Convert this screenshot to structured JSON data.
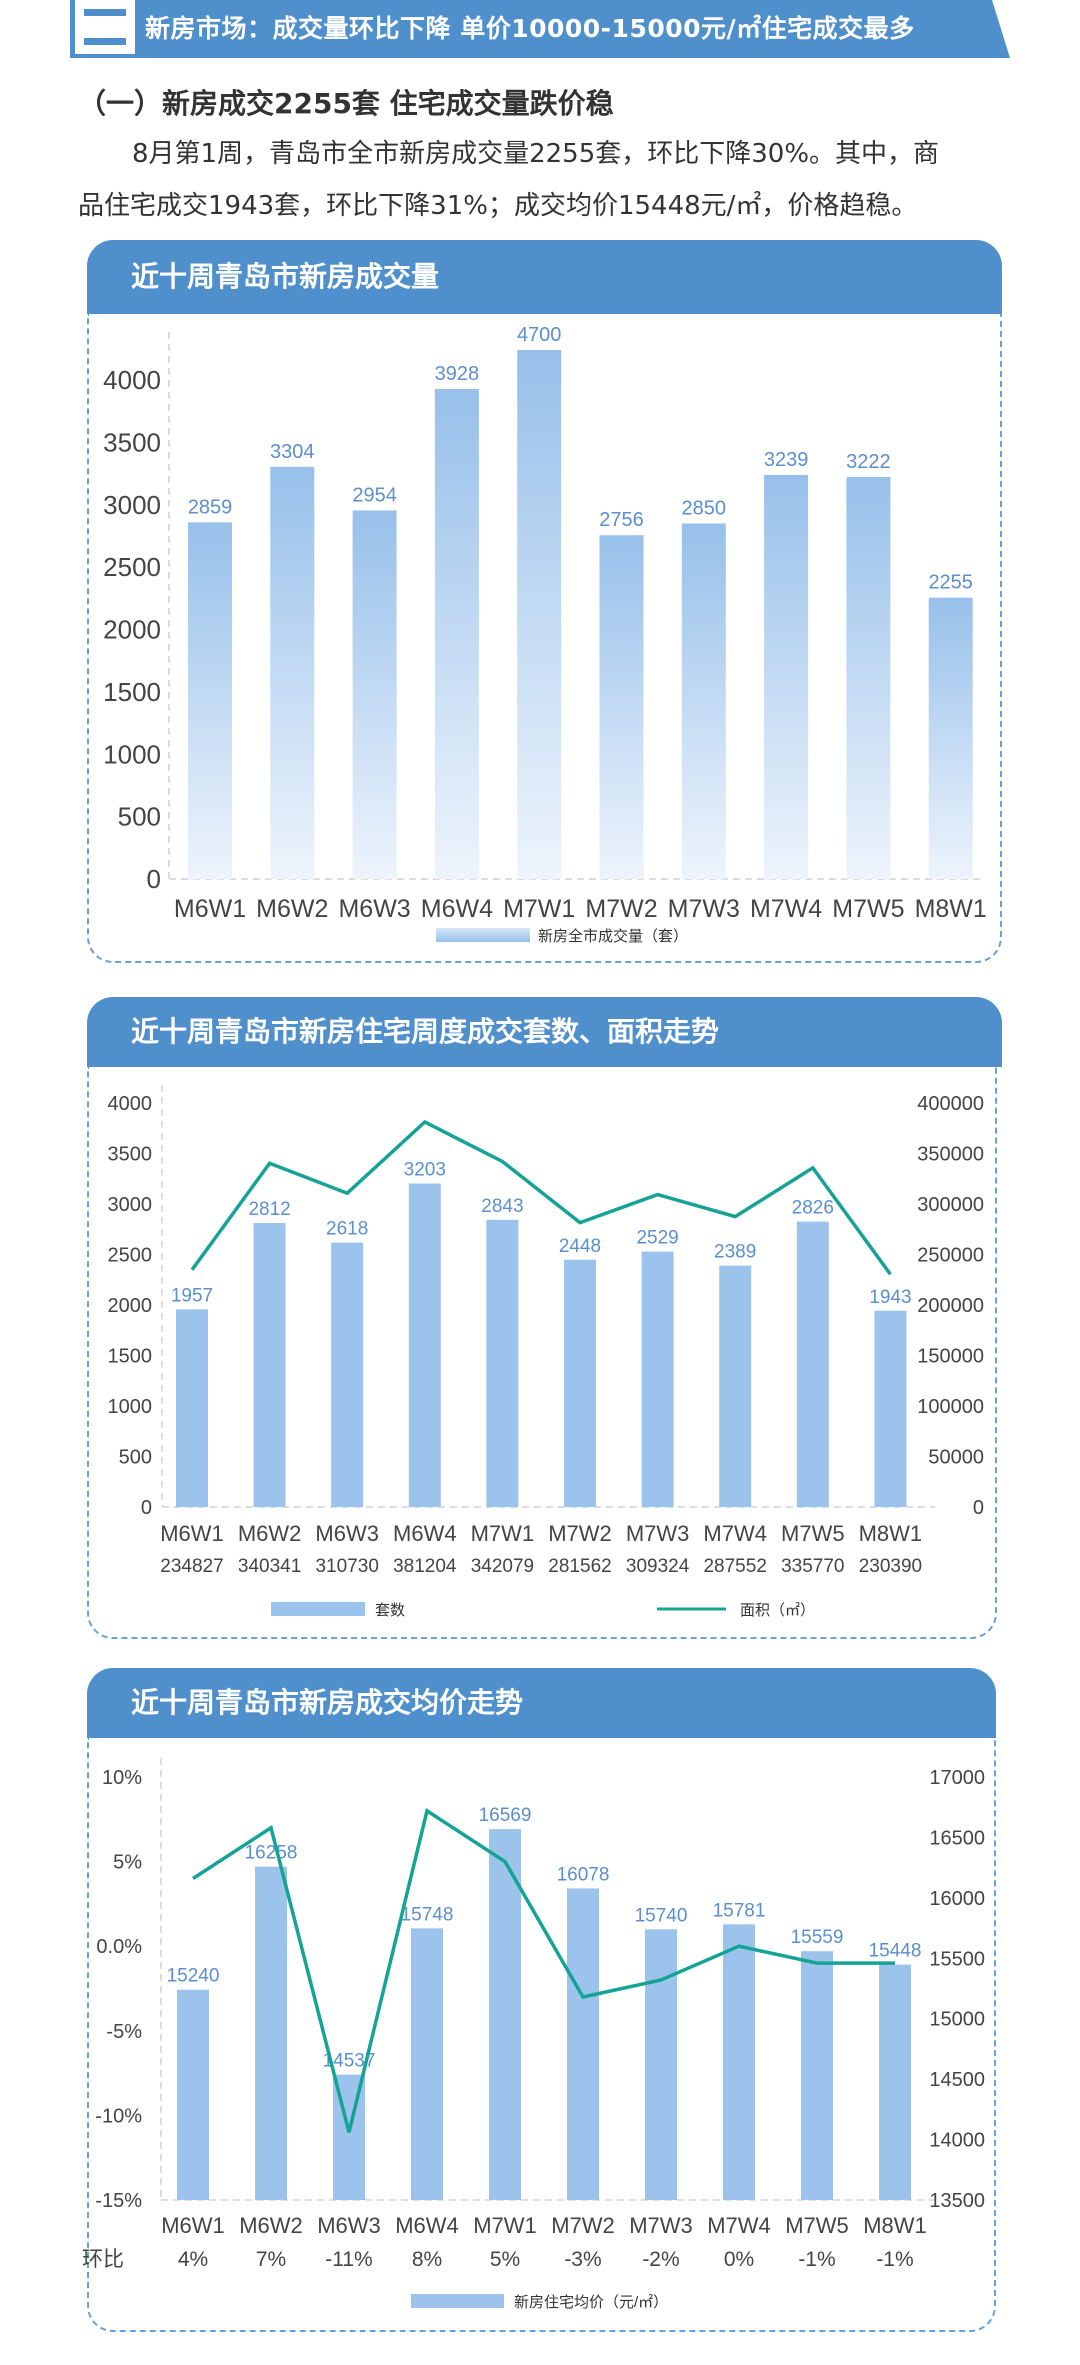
{
  "banner": {
    "number_glyph": "二",
    "title": "新房市场：成交量环比下降  单价10000-15000元/㎡住宅成交最多"
  },
  "section": {
    "heading": "（一）新房成交2255套  住宅成交量跌价稳",
    "paragraph_line1": "8月第1周，青岛市全市新房成交量2255套，环比下降30%。其中，商",
    "paragraph_line2": "品住宅成交1943套，环比下降31%；成交均价15448元/㎡，价格趋稳。"
  },
  "colors": {
    "brand_blue": "#4f8fcb",
    "bar_blue": "#9cc3ec",
    "value_label_blue": "#5b8fcf",
    "line_teal": "#15a396",
    "axis_text": "#444444",
    "panel_border": "#6aa1d8"
  },
  "chart_data": [
    {
      "type": "bar",
      "title": "近十周青岛市新房成交量",
      "categories": [
        "M6W1",
        "M6W2",
        "M6W3",
        "M6W4",
        "M7W1",
        "M7W2",
        "M7W3",
        "M7W4",
        "M7W5",
        "M8W1"
      ],
      "values": [
        2859,
        3304,
        2954,
        3928,
        4700,
        2756,
        2850,
        3239,
        3222,
        2255
      ],
      "yticks": [
        0,
        500,
        1000,
        1500,
        2000,
        2500,
        3000,
        3500,
        4000
      ],
      "ylim": [
        0,
        4300
      ],
      "legend": "新房全市成交量（套）",
      "xlabel": "",
      "ylabel": "",
      "grid": false,
      "legend_position": "bottom"
    },
    {
      "type": "bar+line",
      "title": "近十周青岛市新房住宅周度成交套数、面积走势",
      "categories": [
        "M6W1",
        "M6W2",
        "M6W3",
        "M6W4",
        "M7W1",
        "M7W2",
        "M7W3",
        "M7W4",
        "M7W5",
        "M8W1"
      ],
      "series": [
        {
          "name": "套数",
          "type": "bar",
          "axis": "left",
          "values": [
            1957,
            2812,
            2618,
            3203,
            2843,
            2448,
            2529,
            2389,
            2826,
            1943
          ]
        },
        {
          "name": "面积（㎡）",
          "type": "line",
          "axis": "right",
          "values": [
            234827,
            340341,
            310730,
            381204,
            342079,
            281562,
            309324,
            287552,
            335770,
            230390
          ]
        }
      ],
      "left_yticks": [
        0,
        500,
        1000,
        1500,
        2000,
        2500,
        3000,
        3500,
        4000
      ],
      "right_yticks": [
        0,
        50000,
        100000,
        150000,
        200000,
        250000,
        300000,
        350000,
        400000
      ],
      "left_ylim": [
        0,
        4000
      ],
      "right_ylim": [
        0,
        400000
      ],
      "area_row": [
        "234827",
        "340341",
        "310730",
        "381204",
        "342079",
        "281562",
        "309324",
        "287552",
        "335770",
        "230390"
      ],
      "legend_position": "bottom"
    },
    {
      "type": "bar+line",
      "title": "近十周青岛市新房成交均价走势",
      "categories": [
        "M6W1",
        "M6W2",
        "M6W3",
        "M6W4",
        "M7W1",
        "M7W2",
        "M7W3",
        "M7W4",
        "M7W5",
        "M8W1"
      ],
      "series": [
        {
          "name": "新房住宅均价（元/㎡）",
          "type": "bar",
          "axis": "right",
          "values": [
            15240,
            16258,
            14537,
            15748,
            16569,
            16078,
            15740,
            15781,
            15559,
            15448
          ]
        },
        {
          "name": "环比",
          "type": "line",
          "axis": "left",
          "values": [
            4,
            7,
            -11,
            8,
            5,
            -3,
            -2,
            0,
            -1,
            -1
          ]
        }
      ],
      "left_yticks": [
        "-15%",
        "-10%",
        "-5%",
        "0.0%",
        "5%",
        "10%"
      ],
      "left_ytick_values": [
        -15,
        -10,
        -5,
        0,
        5,
        10
      ],
      "right_yticks": [
        13500,
        14000,
        14500,
        15000,
        15500,
        16000,
        16500,
        17000
      ],
      "left_ylim": [
        -15,
        10
      ],
      "right_ylim": [
        13500,
        17000
      ],
      "mom_row_label": "环比",
      "mom_row": [
        "4%",
        "7%",
        "-11%",
        "8%",
        "5%",
        "-3%",
        "-2%",
        "0%",
        "-1%",
        "-1%"
      ],
      "legend": "新房住宅均价（元/㎡）",
      "legend_position": "bottom"
    }
  ]
}
